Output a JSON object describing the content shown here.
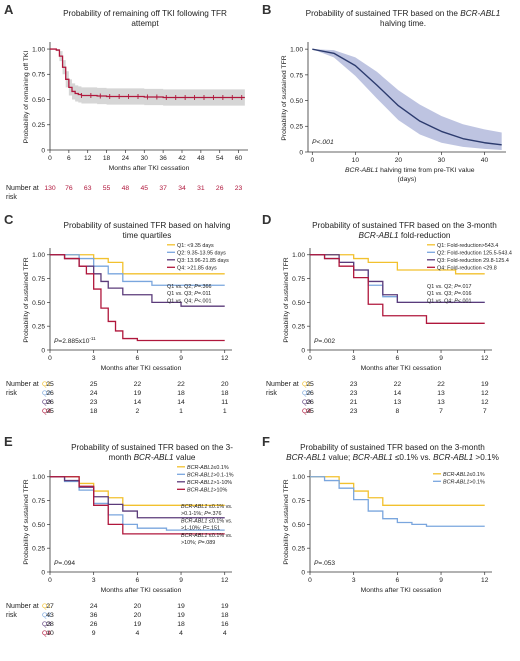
{
  "figure": {
    "background": "#ffffff"
  },
  "colors": {
    "q1": "#f2c12e",
    "q2": "#7aa6de",
    "q3": "#5b3b7a",
    "q4": "#b0173c",
    "panelA_line": "#b0173c",
    "panelA_ci": "#cfcfcf",
    "panelB_line": "#2c3b6e",
    "panelB_ci": "#aeb5d9",
    "panelF_low": "#f2c12e",
    "panelF_high": "#7aa6de"
  },
  "chart_data": [
    {
      "id": "A",
      "letter": "A",
      "type": "line",
      "title": "Probability of remaining off TKI following TFR attempt",
      "xlabel": "Months after TKI cessation",
      "ylabel": "Probability of remaining off TKI",
      "xlim": [
        0,
        63
      ],
      "ylim": [
        0,
        1.05
      ],
      "xticks": [
        "0",
        "6",
        "12",
        "18",
        "24",
        "30",
        "36",
        "42",
        "48",
        "54",
        "60"
      ],
      "xtick_values": [
        0,
        6,
        12,
        18,
        24,
        30,
        36,
        42,
        48,
        54,
        60
      ],
      "yticks": [
        "0",
        "0.25",
        "0.50",
        "0.75",
        "1.00"
      ],
      "ytick_values": [
        0,
        0.25,
        0.5,
        0.75,
        1.0
      ],
      "series": [
        {
          "x": [
            0,
            2,
            3,
            4,
            5,
            6,
            7,
            8,
            9,
            10,
            12,
            15,
            18,
            24,
            30,
            36,
            42,
            48,
            54,
            60,
            62
          ],
          "y": [
            1,
            0.99,
            0.93,
            0.82,
            0.7,
            0.62,
            0.58,
            0.56,
            0.55,
            0.54,
            0.54,
            0.535,
            0.53,
            0.53,
            0.525,
            0.52,
            0.52,
            0.52,
            0.52,
            0.52,
            0.52
          ],
          "ci_low": [
            1,
            0.98,
            0.88,
            0.75,
            0.62,
            0.54,
            0.5,
            0.48,
            0.47,
            0.46,
            0.46,
            0.455,
            0.45,
            0.45,
            0.445,
            0.44,
            0.44,
            0.44,
            0.44,
            0.44,
            0.44
          ],
          "ci_high": [
            1,
            1,
            0.98,
            0.89,
            0.78,
            0.7,
            0.66,
            0.64,
            0.63,
            0.62,
            0.62,
            0.615,
            0.61,
            0.61,
            0.605,
            0.6,
            0.6,
            0.6,
            0.6,
            0.6,
            0.6
          ],
          "censor_x": [
            10,
            13,
            16,
            19,
            22,
            25,
            28,
            31,
            34,
            37,
            40,
            43,
            46,
            49,
            52,
            55,
            58,
            61
          ]
        }
      ],
      "risk": {
        "label1": "Number at",
        "label2": "risk",
        "values": [
          "130",
          "76",
          "63",
          "55",
          "48",
          "45",
          "37",
          "34",
          "31",
          "26",
          "23"
        ]
      }
    },
    {
      "id": "B",
      "letter": "B",
      "type": "line",
      "title_parts": [
        "Probability of sustained TFR based on the ",
        "BCR-ABL1",
        " halving time."
      ],
      "xlabel_italic": "BCR-ABL1",
      "xlabel_rest": " halving time from pre-TKI value",
      "xlabel2": "(days)",
      "ylabel": "Probability of sustained TFR",
      "xlim": [
        -1,
        45
      ],
      "ylim": [
        0,
        1.05
      ],
      "xticks": [
        "0",
        "10",
        "20",
        "30",
        "40"
      ],
      "xtick_values": [
        0,
        10,
        20,
        30,
        40
      ],
      "yticks": [
        "0",
        "0.25",
        "0.50",
        "0.75",
        "1.00"
      ],
      "ytick_values": [
        0,
        0.25,
        0.5,
        0.75,
        1.0
      ],
      "pvalue": "P<.001",
      "series": [
        {
          "x": [
            0,
            5,
            10,
            15,
            20,
            25,
            30,
            35,
            40,
            44
          ],
          "y": [
            1.0,
            0.96,
            0.84,
            0.65,
            0.45,
            0.3,
            0.2,
            0.13,
            0.09,
            0.07
          ],
          "ci_low": [
            1.0,
            0.92,
            0.74,
            0.52,
            0.31,
            0.17,
            0.09,
            0.05,
            0.03,
            0.02
          ],
          "ci_high": [
            1.0,
            0.99,
            0.92,
            0.78,
            0.6,
            0.46,
            0.35,
            0.27,
            0.22,
            0.19
          ]
        }
      ]
    },
    {
      "id": "C",
      "letter": "C",
      "type": "line",
      "title": "Probability of sustained TFR based on halving time quartiles",
      "xlabel": "Months after TKI cessation",
      "ylabel": "Probability of sustained TFR",
      "xlim": [
        0,
        12.5
      ],
      "ylim": [
        0,
        1.05
      ],
      "xticks": [
        "0",
        "3",
        "6",
        "9",
        "12"
      ],
      "xtick_values": [
        0,
        3,
        6,
        9,
        12
      ],
      "yticks": [
        "0",
        "0.25",
        "0.50",
        "0.75",
        "1.00"
      ],
      "ytick_values": [
        0,
        0.25,
        0.5,
        0.75,
        1.0
      ],
      "legend": [
        "Q1: <9.35 days",
        "Q2: 9.35-13.95 days",
        "Q3: 13.96-21.85 days",
        "Q4: >21.85 days"
      ],
      "comparisons": [
        "Q1 vs. Q2; P=.366",
        "Q1 vs. Q3; P=.011",
        "Q1 vs. Q4; P<.001"
      ],
      "pvalue_pre": "P=2.885x10",
      "pvalue_exp": "-11",
      "series": [
        {
          "name": "Q1",
          "x": [
            0,
            3,
            4,
            5,
            12
          ],
          "y": [
            1,
            0.96,
            0.92,
            0.8,
            0.8
          ]
        },
        {
          "name": "Q2",
          "x": [
            0,
            2,
            3,
            4,
            5,
            7,
            12
          ],
          "y": [
            1,
            0.96,
            0.88,
            0.8,
            0.72,
            0.68,
            0.68
          ]
        },
        {
          "name": "Q3",
          "x": [
            0,
            1,
            2,
            3,
            3.5,
            4,
            5,
            7,
            9,
            12
          ],
          "y": [
            1,
            0.96,
            0.88,
            0.8,
            0.72,
            0.65,
            0.58,
            0.5,
            0.46,
            0.46
          ]
        },
        {
          "name": "Q4",
          "x": [
            0,
            1,
            2,
            2.5,
            3,
            3.5,
            4,
            4.5,
            5,
            6,
            7,
            12
          ],
          "y": [
            1,
            0.96,
            0.88,
            0.8,
            0.64,
            0.44,
            0.3,
            0.2,
            0.12,
            0.1,
            0.1,
            0.1
          ]
        }
      ],
      "risk": {
        "label1": "Number at",
        "label2": "risk",
        "rows": [
          {
            "name": "Q1",
            "values": [
              "25",
              "25",
              "22",
              "22",
              "20"
            ]
          },
          {
            "name": "Q2",
            "values": [
              "26",
              "24",
              "19",
              "18",
              "18"
            ]
          },
          {
            "name": "Q3",
            "values": [
              "26",
              "23",
              "14",
              "14",
              "11"
            ]
          },
          {
            "name": "Q4",
            "values": [
              "25",
              "18",
              "2",
              "1",
              "1"
            ]
          }
        ]
      }
    },
    {
      "id": "D",
      "letter": "D",
      "type": "line",
      "title_parts": [
        "Probability of sustained TFR based on the 3-month ",
        "BCR-ABL1",
        " fold-reduction"
      ],
      "xlabel": "Months after TKI cessation",
      "ylabel": "Probability of sustained TFR",
      "xlim": [
        0,
        12.5
      ],
      "ylim": [
        0,
        1.05
      ],
      "xticks": [
        "0",
        "3",
        "6",
        "9",
        "12"
      ],
      "xtick_values": [
        0,
        3,
        6,
        9,
        12
      ],
      "yticks": [
        "0",
        "0.25",
        "0.50",
        "0.75",
        "1.00"
      ],
      "ytick_values": [
        0,
        0.25,
        0.5,
        0.75,
        1.0
      ],
      "legend": [
        "Q1: Fold-reduction>543.4",
        "Q2: Fold-reduction 125.5-543.4",
        "Q3: Fold-reduction 29.8-125.4",
        "Q4: Fold-reduction <29.8"
      ],
      "comparisons": [
        "Q1 vs. Q2; P=.017",
        "Q1 vs. Q3; P=.016",
        "Q1 vs. Q4; P<.001"
      ],
      "pvalue": "P=.002",
      "series": [
        {
          "name": "Q1",
          "x": [
            0,
            3,
            4,
            6,
            10,
            12
          ],
          "y": [
            1,
            0.96,
            0.92,
            0.84,
            0.8,
            0.8
          ]
        },
        {
          "name": "Q2",
          "x": [
            0,
            1,
            2,
            3,
            4,
            5,
            6,
            12
          ],
          "y": [
            1,
            0.96,
            0.92,
            0.84,
            0.68,
            0.56,
            0.5,
            0.5
          ]
        },
        {
          "name": "Q3",
          "x": [
            0,
            2,
            3,
            4,
            5,
            6,
            12
          ],
          "y": [
            1,
            0.92,
            0.84,
            0.72,
            0.58,
            0.5,
            0.5
          ]
        },
        {
          "name": "Q4",
          "x": [
            0,
            1,
            2,
            3,
            4,
            5,
            8,
            12
          ],
          "y": [
            1,
            0.96,
            0.88,
            0.76,
            0.48,
            0.36,
            0.28,
            0.28
          ]
        }
      ],
      "risk": {
        "label1": "Number at",
        "label2": "risk",
        "rows": [
          {
            "name": "Q1",
            "values": [
              "25",
              "23",
              "22",
              "22",
              "19"
            ]
          },
          {
            "name": "Q2",
            "values": [
              "26",
              "23",
              "14",
              "13",
              "12"
            ]
          },
          {
            "name": "Q3",
            "values": [
              "26",
              "21",
              "13",
              "13",
              "12"
            ]
          },
          {
            "name": "Q4",
            "values": [
              "25",
              "23",
              "8",
              "7",
              "7"
            ]
          }
        ]
      }
    },
    {
      "id": "E",
      "letter": "E",
      "type": "line",
      "title_parts": [
        "Probability of sustained TFR based on the 3-month ",
        "BCR-ABL1",
        " value"
      ],
      "xlabel": "Months after TKI cessation",
      "ylabel": "Probability of sustained TFR",
      "xlim": [
        0,
        12.5
      ],
      "ylim": [
        0,
        1.05
      ],
      "xticks": [
        "0",
        "3",
        "6",
        "9",
        "12"
      ],
      "xtick_values": [
        0,
        3,
        6,
        9,
        12
      ],
      "yticks": [
        "0",
        "0.25",
        "0.50",
        "0.75",
        "1.00"
      ],
      "ytick_values": [
        0,
        0.25,
        0.5,
        0.75,
        1.0
      ],
      "legend": [
        "BCR-ABL1≤0.1%",
        "BCR-ABL1>0.1-1%",
        "BCR-ABL1>1-10%",
        "BCR-ABL1>10%"
      ],
      "comparisons": [
        "BCR-ABL1 ≤0.1% vs.",
        "  >0.1-1%; P=.376",
        "BCR-ABL1 ≤0.1% vs.",
        "  >1-10%; P=.151",
        "BCR-ABL1 ≤0.1% vs.",
        "  >10%; P=.089"
      ],
      "pvalue": "P=.094",
      "series": [
        {
          "name": "Q1",
          "x": [
            0,
            2,
            3,
            4,
            5,
            12
          ],
          "y": [
            1,
            0.93,
            0.85,
            0.78,
            0.7,
            0.7
          ]
        },
        {
          "name": "Q2",
          "x": [
            0,
            1,
            2,
            3,
            4,
            5,
            6,
            8,
            12
          ],
          "y": [
            1,
            0.95,
            0.86,
            0.72,
            0.6,
            0.5,
            0.46,
            0.44,
            0.44
          ]
        },
        {
          "name": "Q3",
          "x": [
            0,
            1,
            2,
            3,
            4,
            5,
            6,
            12
          ],
          "y": [
            1,
            0.96,
            0.89,
            0.79,
            0.71,
            0.64,
            0.57,
            0.57
          ]
        },
        {
          "name": "Q4",
          "x": [
            0,
            2,
            3,
            4,
            5,
            12
          ],
          "y": [
            1,
            0.9,
            0.7,
            0.5,
            0.4,
            0.4
          ]
        }
      ],
      "risk": {
        "label1": "Number at",
        "label2": "risk",
        "rows": [
          {
            "name": "Q1",
            "values": [
              "27",
              "24",
              "20",
              "19",
              "19"
            ]
          },
          {
            "name": "Q2",
            "values": [
              "43",
              "36",
              "20",
              "19",
              "18"
            ]
          },
          {
            "name": "Q3",
            "values": [
              "28",
              "26",
              "19",
              "18",
              "16"
            ]
          },
          {
            "name": "Q4",
            "values": [
              "10",
              "9",
              "4",
              "4",
              "4"
            ]
          }
        ]
      }
    },
    {
      "id": "F",
      "letter": "F",
      "type": "line",
      "title_line1_parts": [
        "Probability of sustained TFR based on the 3-month"
      ],
      "title_line2_parts": [
        "BCR-ABL1",
        " value; ",
        "BCR-ABL1",
        " ≤0.1% vs. ",
        "BCR-ABL1",
        " >0.1%"
      ],
      "xlabel": "Months after TKI cessation",
      "ylabel": "Probability of sustained TFR",
      "xlim": [
        0,
        12.5
      ],
      "ylim": [
        0,
        1.05
      ],
      "xticks": [
        "0",
        "3",
        "6",
        "9",
        "12"
      ],
      "xtick_values": [
        0,
        3,
        6,
        9,
        12
      ],
      "yticks": [
        "0",
        "0.25",
        "0.50",
        "0.75",
        "1.00"
      ],
      "ytick_values": [
        0,
        0.25,
        0.5,
        0.75,
        1.0
      ],
      "legend": [
        "BCR-ABL1≤0.1%",
        "BCR-ABL1>0.1%"
      ],
      "pvalue": "P=.053",
      "series": [
        {
          "name": "≤0.1%",
          "x": [
            0,
            2,
            3,
            4,
            5,
            12
          ],
          "y": [
            1,
            0.93,
            0.85,
            0.78,
            0.7,
            0.7
          ]
        },
        {
          "name": ">0.1%",
          "x": [
            0,
            1,
            2,
            3,
            4,
            5,
            6,
            7,
            8,
            12
          ],
          "y": [
            1,
            0.96,
            0.88,
            0.76,
            0.64,
            0.56,
            0.52,
            0.5,
            0.48,
            0.48
          ]
        }
      ]
    }
  ]
}
